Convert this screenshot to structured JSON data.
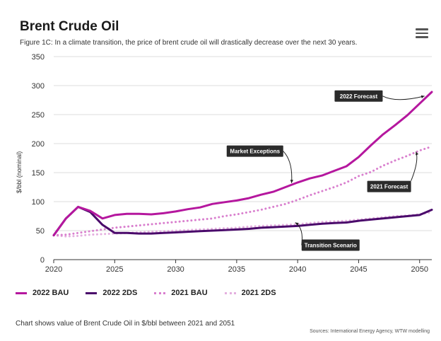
{
  "header": {
    "title": "Brent Crude Oil",
    "subtitle": "Figure 1C: In a climate transition, the price of brent crude oil will drastically decrease over the next 30 years."
  },
  "menu": {
    "icon": "hamburger-menu-icon"
  },
  "chart_data": {
    "type": "line",
    "title": "Brent Crude Oil",
    "xlabel": "",
    "ylabel": "$/bbl (nominal)",
    "xlim": [
      2020,
      2051
    ],
    "ylim": [
      0,
      350
    ],
    "xticks": [
      2020,
      2025,
      2030,
      2035,
      2040,
      2045,
      2050
    ],
    "yticks": [
      0,
      50,
      100,
      150,
      200,
      250,
      300,
      350
    ],
    "x": [
      2020,
      2021,
      2022,
      2023,
      2024,
      2025,
      2026,
      2027,
      2028,
      2029,
      2030,
      2031,
      2032,
      2033,
      2034,
      2035,
      2036,
      2037,
      2038,
      2039,
      2040,
      2041,
      2042,
      2043,
      2044,
      2045,
      2046,
      2047,
      2048,
      2049,
      2050,
      2051
    ],
    "series": [
      {
        "name": "2022 BAU",
        "color": "#b5179e",
        "dash": "solid",
        "values": [
          42,
          71,
          91,
          84,
          71,
          77,
          79,
          79,
          78,
          80,
          83,
          87,
          90,
          96,
          99,
          102,
          106,
          112,
          117,
          125,
          133,
          140,
          145,
          153,
          161,
          177,
          197,
          216,
          232,
          249,
          269,
          289
        ]
      },
      {
        "name": "2022 2DS",
        "color": "#4a0a6b",
        "dash": "solid",
        "values": [
          42,
          71,
          91,
          82,
          60,
          46,
          46,
          45,
          45,
          46,
          47,
          48,
          49,
          50,
          51,
          52,
          53,
          55,
          56,
          57,
          58,
          60,
          62,
          63,
          64,
          67,
          69,
          71,
          73,
          75,
          77,
          86
        ]
      },
      {
        "name": "2021 BAU",
        "color": "#d97fce",
        "dash": "dotted",
        "values": [
          42,
          43,
          46,
          49,
          52,
          55,
          57,
          59,
          61,
          63,
          65,
          67,
          69,
          71,
          75,
          78,
          82,
          86,
          91,
          96,
          103,
          111,
          118,
          125,
          133,
          144,
          151,
          162,
          171,
          179,
          188,
          195
        ]
      },
      {
        "name": "2021 2DS",
        "color": "#e4b0df",
        "dash": "dotted",
        "values": [
          42,
          40,
          41,
          43,
          44,
          45,
          46,
          47,
          48,
          49,
          50,
          51,
          52,
          53,
          54,
          55,
          57,
          58,
          59,
          60,
          61,
          63,
          65,
          66,
          67,
          69,
          71,
          73,
          75,
          76,
          78,
          82
        ]
      }
    ],
    "legend_position": "bottom-left",
    "annotations": [
      {
        "text": "2022 Forecast",
        "x": 2050.5,
        "y": 285
      },
      {
        "text": "Market Exceptions",
        "x": 2039.5,
        "y": 130
      },
      {
        "text": "2021 Forecast",
        "x": 2050,
        "y": 186
      },
      {
        "text": "Transition Scenario",
        "x": 2040,
        "y": 64
      }
    ]
  },
  "footer": {
    "caption": "Chart shows value of Brent Crude Oil in $/bbl between 2021 and 2051",
    "sources": "Sources: International Energy Agency, WTW modelling"
  }
}
